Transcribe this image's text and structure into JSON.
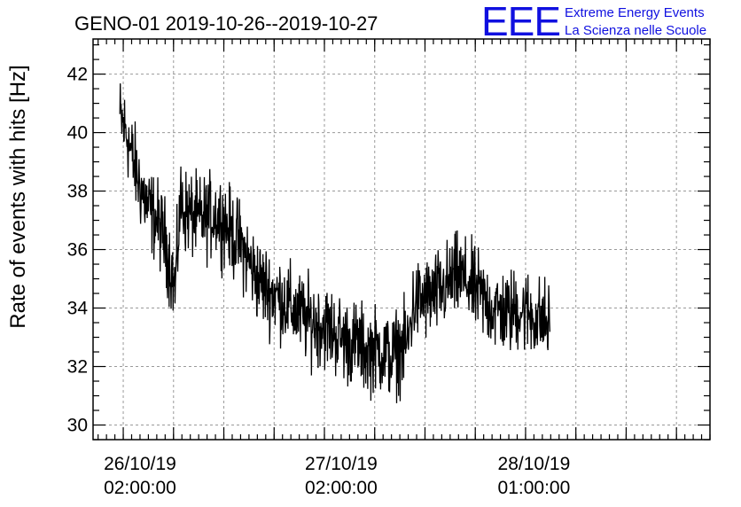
{
  "chart_data": {
    "type": "line",
    "title": "GENO-01 2019-10-26--2019-10-27",
    "ylabel": "Rate of events with hits [Hz]",
    "xlabel": "",
    "ylim": [
      29.5,
      43.2
    ],
    "yticks": [
      30,
      32,
      34,
      36,
      38,
      40,
      42
    ],
    "ytick_labels": [
      "30",
      "32",
      "34",
      "36",
      "38",
      "40",
      "42"
    ],
    "x_unit": "hours since 26/10/19 00:00:00",
    "xlim": [
      -3.6,
      70.0
    ],
    "xticks": [
      2,
      26,
      49
    ],
    "xtick_labels": [
      {
        "date": "26/10/19",
        "time": "02:00:00"
      },
      {
        "date": "27/10/19",
        "time": "02:00:00"
      },
      {
        "date": "28/10/19",
        "time": "01:00:00"
      }
    ],
    "grid": true,
    "series": [
      {
        "color": "#000000",
        "x": [
          -0.4,
          0.5,
          1.0,
          2.0,
          3.0,
          4.0,
          5.0,
          5.4,
          5.8,
          6.2,
          6.8,
          7.5,
          9.0,
          11.0,
          12.0,
          13.0,
          14.0,
          15.0,
          16.0,
          17.0,
          18.0,
          19.0,
          20.0,
          21.0,
          22.0,
          23.0,
          24.0,
          25.0,
          26.0,
          27.0,
          28.0,
          29.0,
          30.0,
          31.0,
          32.0,
          33.0,
          34.0,
          34.3,
          34.6,
          35.0,
          36.0,
          37.0,
          38.0,
          39.0,
          40.0,
          41.0,
          42.0,
          43.0,
          44.0,
          45.0,
          46.0,
          47.0,
          48.0,
          49.0,
          50.0,
          50.9
        ],
        "y": [
          40.5,
          39.9,
          39.2,
          38.2,
          37.4,
          37.0,
          36.3,
          35.8,
          35.2,
          34.6,
          37.6,
          37.3,
          37.0,
          37.2,
          37.0,
          36.5,
          36.2,
          35.6,
          35.0,
          34.7,
          34.5,
          34.3,
          34.0,
          33.8,
          33.6,
          33.5,
          33.4,
          33.2,
          33.0,
          32.8,
          32.8,
          32.5,
          32.6,
          32.5,
          32.3,
          32.6,
          32.8,
          33.6,
          34.1,
          34.2,
          34.3,
          34.4,
          34.6,
          34.9,
          35.1,
          34.9,
          34.6,
          34.3,
          34.0,
          33.9,
          33.8,
          34.0,
          33.9,
          33.7,
          33.6,
          33.4
        ],
        "noise_amplitude": 1.1
      }
    ]
  },
  "logo": {
    "mark": "EEE",
    "line1": "Extreme Energy Events",
    "line2": "La Scienza nelle Scuole",
    "color": "#1010e0"
  }
}
